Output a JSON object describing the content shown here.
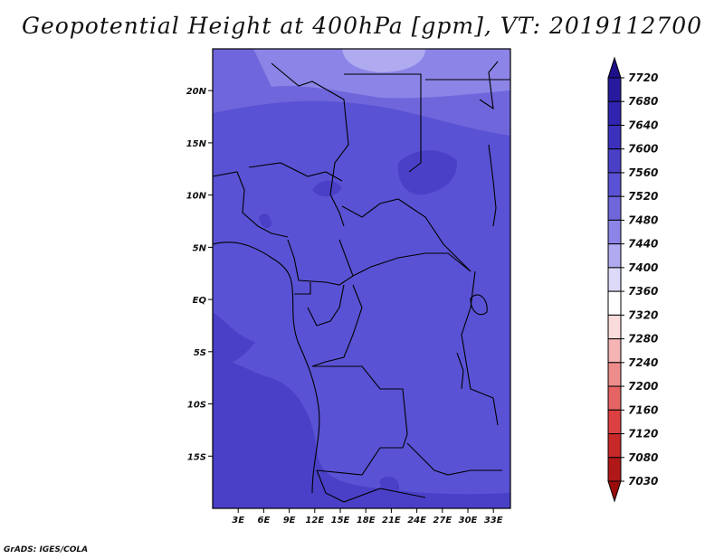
{
  "title": "Geopotential Height at 400hPa [gpm], VT: 2019112700",
  "footer": "GrADS: IGES/COLA",
  "map": {
    "lon_range": [
      0,
      35
    ],
    "lat_range": [
      -20,
      24
    ],
    "lat_ticks": [
      {
        "value": 20,
        "label": "20N"
      },
      {
        "value": 15,
        "label": "15N"
      },
      {
        "value": 10,
        "label": "10N"
      },
      {
        "value": 5,
        "label": "5N"
      },
      {
        "value": 0,
        "label": "EQ"
      },
      {
        "value": -5,
        "label": "5S"
      },
      {
        "value": -10,
        "label": "10S"
      },
      {
        "value": -15,
        "label": "15S"
      }
    ],
    "lon_ticks": [
      {
        "value": 3,
        "label": "3E"
      },
      {
        "value": 6,
        "label": "6E"
      },
      {
        "value": 9,
        "label": "9E"
      },
      {
        "value": 12,
        "label": "12E"
      },
      {
        "value": 15,
        "label": "15E"
      },
      {
        "value": 18,
        "label": "18E"
      },
      {
        "value": 21,
        "label": "21E"
      },
      {
        "value": 24,
        "label": "24E"
      },
      {
        "value": 27,
        "label": "27E"
      },
      {
        "value": 30,
        "label": "30E"
      },
      {
        "value": 33,
        "label": "33E"
      }
    ]
  },
  "colorbar": {
    "levels": [
      "7720",
      "7680",
      "7640",
      "7600",
      "7560",
      "7520",
      "7480",
      "7440",
      "7400",
      "7360",
      "7320",
      "7280",
      "7240",
      "7200",
      "7160",
      "7120",
      "7080",
      "7030"
    ],
    "colors": [
      "#1e0f8a",
      "#281a9e",
      "#3024b0",
      "#3a30bc",
      "#4a40c8",
      "#5a52d4",
      "#7066dc",
      "#8c84e6",
      "#b0aaf0",
      "#dcdaf8",
      "#ffffff",
      "#fadcdc",
      "#f5b4b4",
      "#ee8c8c",
      "#e66464",
      "#dc4040",
      "#c82828",
      "#b01818",
      "#9a0c0c"
    ]
  },
  "colors": {
    "field_low": "#4a40c8",
    "field_mid": "#5a52d4",
    "field_high": "#7066dc",
    "field_highest": "#8c84e6",
    "boundary": "#000000"
  }
}
